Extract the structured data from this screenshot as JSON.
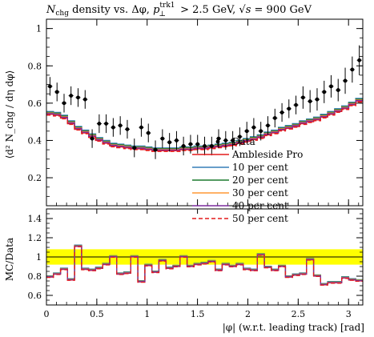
{
  "title_parts": {
    "n": "N",
    "chg": "chg",
    "density_vs": " density vs. Δφ, ",
    "p": "p",
    "perp": "⊥",
    "trk1": "trk1",
    "cut": " > 2.5 GeV, ",
    "sqrt": "√s",
    "energy": " = 900 GeV"
  },
  "ylabel_main": "⟨d² N_chg / dη dφ⟩",
  "ylabel_ratio": "MC/Data",
  "xlabel": "|φ| (w.r.t. leading track) [rad]",
  "colors": {
    "data": "#000000",
    "ambleside": "#e41a1c",
    "p10": "#377eb8",
    "p20": "#1b7a2e",
    "p30": "#ff9933",
    "p40": "#7b2c9e",
    "p50": "#e41a1c",
    "band": "#ffff00"
  },
  "chart_data": [
    {
      "type": "scatter",
      "panel": "main",
      "xlim": [
        0,
        3.1416
      ],
      "ylim": [
        0.05,
        1.05
      ],
      "yticks": [
        0.2,
        0.4,
        0.6,
        0.8,
        1
      ],
      "legend_position": "inside-right",
      "legend": [
        "Data",
        "Ambleside Pro",
        "10 per cent",
        "20 per cent",
        "30 per cent",
        "40 per cent",
        "50 per cent"
      ],
      "data": {
        "name": "Data",
        "x": [
          0.035,
          0.105,
          0.175,
          0.244,
          0.314,
          0.384,
          0.454,
          0.524,
          0.593,
          0.663,
          0.733,
          0.803,
          0.873,
          0.942,
          1.012,
          1.082,
          1.152,
          1.222,
          1.292,
          1.361,
          1.431,
          1.501,
          1.571,
          1.641,
          1.71,
          1.78,
          1.85,
          1.92,
          1.99,
          2.059,
          2.129,
          2.199,
          2.269,
          2.339,
          2.408,
          2.478,
          2.548,
          2.618,
          2.688,
          2.758,
          2.827,
          2.897,
          2.967,
          3.037,
          3.107
        ],
        "y": [
          0.69,
          0.66,
          0.6,
          0.64,
          0.63,
          0.62,
          0.41,
          0.49,
          0.49,
          0.47,
          0.48,
          0.46,
          0.36,
          0.47,
          0.44,
          0.35,
          0.41,
          0.39,
          0.4,
          0.37,
          0.38,
          0.38,
          0.37,
          0.37,
          0.41,
          0.4,
          0.4,
          0.42,
          0.45,
          0.47,
          0.45,
          0.48,
          0.52,
          0.55,
          0.57,
          0.59,
          0.63,
          0.61,
          0.62,
          0.66,
          0.69,
          0.67,
          0.72,
          0.78,
          0.83
        ],
        "yerr": [
          0.05,
          0.05,
          0.05,
          0.05,
          0.05,
          0.05,
          0.05,
          0.05,
          0.05,
          0.05,
          0.05,
          0.05,
          0.05,
          0.05,
          0.05,
          0.05,
          0.05,
          0.05,
          0.05,
          0.05,
          0.05,
          0.05,
          0.05,
          0.05,
          0.05,
          0.05,
          0.05,
          0.05,
          0.05,
          0.05,
          0.05,
          0.05,
          0.05,
          0.05,
          0.05,
          0.05,
          0.06,
          0.06,
          0.06,
          0.06,
          0.06,
          0.06,
          0.07,
          0.07,
          0.08
        ]
      },
      "series": [
        {
          "name": "Ambleside Pro",
          "offset": 0.0
        },
        {
          "name": "10 per cent",
          "offset": 0.015
        },
        {
          "name": "20 per cent",
          "offset": 0.011
        },
        {
          "name": "30 per cent",
          "offset": 0.007
        },
        {
          "name": "40 per cent",
          "offset": 0.004
        },
        {
          "name": "50 per cent",
          "offset": -0.004
        }
      ],
      "mc_base": [
        0.54,
        0.535,
        0.52,
        0.49,
        0.46,
        0.44,
        0.42,
        0.4,
        0.385,
        0.37,
        0.365,
        0.36,
        0.355,
        0.355,
        0.35,
        0.345,
        0.345,
        0.345,
        0.345,
        0.35,
        0.35,
        0.355,
        0.355,
        0.36,
        0.365,
        0.37,
        0.375,
        0.385,
        0.395,
        0.405,
        0.415,
        0.43,
        0.44,
        0.455,
        0.465,
        0.475,
        0.49,
        0.5,
        0.51,
        0.525,
        0.54,
        0.555,
        0.57,
        0.59,
        0.61
      ]
    },
    {
      "type": "line",
      "panel": "ratio",
      "xlim": [
        0,
        3.1416
      ],
      "ylim": [
        0.5,
        1.5
      ],
      "yticks": [
        0.6,
        0.8,
        1,
        1.2,
        1.4
      ],
      "xticks": [
        0,
        0.5,
        1,
        1.5,
        2,
        2.5,
        3
      ],
      "band": [
        0.92,
        1.08
      ],
      "ratio_base": [
        0.79,
        0.82,
        0.87,
        0.76,
        1.11,
        0.87,
        0.86,
        0.88,
        0.92,
        1.0,
        0.82,
        0.83,
        1.0,
        0.74,
        0.91,
        0.84,
        0.96,
        0.88,
        0.9,
        1.0,
        0.9,
        0.92,
        0.93,
        0.95,
        0.86,
        0.92,
        0.9,
        0.92,
        0.87,
        0.86,
        1.02,
        0.89,
        0.86,
        0.9,
        0.79,
        0.81,
        0.82,
        0.97,
        0.8,
        0.71,
        0.73,
        0.73,
        0.78,
        0.76,
        0.75
      ]
    }
  ]
}
